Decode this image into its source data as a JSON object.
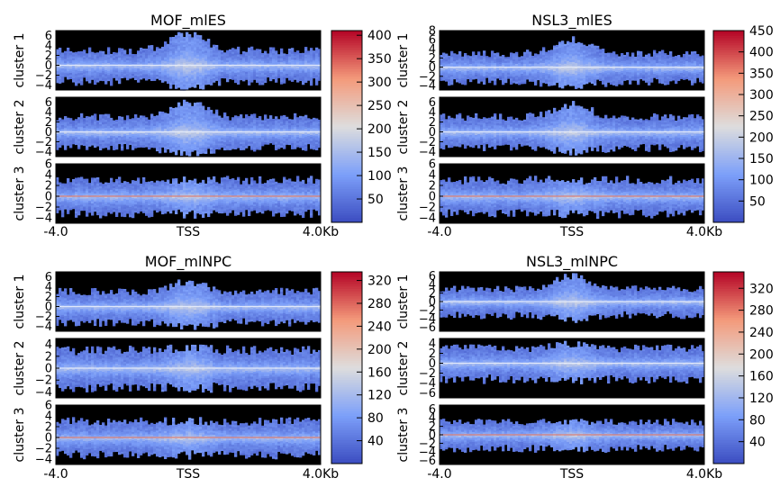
{
  "chart_data": [
    {
      "type": "heatmap",
      "title": "MOF_mlES",
      "x_ticks": [
        "-4.0",
        "TSS",
        "4.0Kb"
      ],
      "clusters": [
        {
          "label": "cluster 1",
          "ylim": [
            -5,
            7
          ],
          "y_ticks": [
            "6",
            "4",
            "2",
            "0",
            "−2",
            "−4"
          ],
          "peak_height": 3.5
        },
        {
          "label": "cluster 2",
          "ylim": [
            -5,
            7
          ],
          "y_ticks": [
            "6",
            "4",
            "2",
            "0",
            "−2",
            "−4"
          ],
          "peak_height": 3.0
        },
        {
          "label": "cluster 3",
          "ylim": [
            -5,
            6
          ],
          "y_ticks": [
            "6",
            "4",
            "2",
            "0",
            "−2",
            "−4"
          ],
          "peak_height": 0.0
        }
      ],
      "colorbar": {
        "min": 0,
        "max": 410,
        "ticks": [
          "50",
          "100",
          "150",
          "200",
          "250",
          "300",
          "350",
          "400"
        ],
        "tick_values": [
          50,
          100,
          150,
          200,
          250,
          300,
          350,
          400
        ]
      }
    },
    {
      "type": "heatmap",
      "title": "NSL3_mlES",
      "x_ticks": [
        "-4.0",
        "TSS",
        "4.0Kb"
      ],
      "clusters": [
        {
          "label": "cluster 1",
          "ylim": [
            -5,
            8
          ],
          "y_ticks": [
            "8",
            "6",
            "4",
            "2",
            "0",
            "−2",
            "−4"
          ],
          "peak_height": 3.0
        },
        {
          "label": "cluster 2",
          "ylim": [
            -5,
            7
          ],
          "y_ticks": [
            "6",
            "4",
            "2",
            "0",
            "−2",
            "−4"
          ],
          "peak_height": 2.5
        },
        {
          "label": "cluster 3",
          "ylim": [
            -5,
            6
          ],
          "y_ticks": [
            "6",
            "4",
            "2",
            "0",
            "−2",
            "−4"
          ],
          "peak_height": 0.0
        }
      ],
      "colorbar": {
        "min": 0,
        "max": 450,
        "ticks": [
          "50",
          "100",
          "150",
          "200",
          "250",
          "300",
          "350",
          "400",
          "450"
        ],
        "tick_values": [
          50,
          100,
          150,
          200,
          250,
          300,
          350,
          400,
          450
        ]
      }
    },
    {
      "type": "heatmap",
      "title": "MOF_mlNPC",
      "x_ticks": [
        "-4.0",
        "TSS",
        "4.0Kb"
      ],
      "clusters": [
        {
          "label": "cluster 1",
          "ylim": [
            -5,
            7
          ],
          "y_ticks": [
            "6",
            "4",
            "2",
            "0",
            "−2",
            "−4"
          ],
          "peak_height": 2.0
        },
        {
          "label": "cluster 2",
          "ylim": [
            -5,
            5
          ],
          "y_ticks": [
            "4",
            "2",
            "0",
            "−2",
            "−4"
          ],
          "peak_height": 0.5
        },
        {
          "label": "cluster 3",
          "ylim": [
            -5,
            6
          ],
          "y_ticks": [
            "6",
            "4",
            "2",
            "0",
            "−2",
            "−4"
          ],
          "peak_height": 0.0
        }
      ],
      "colorbar": {
        "min": 0,
        "max": 335,
        "ticks": [
          "40",
          "80",
          "120",
          "160",
          "200",
          "240",
          "280",
          "320"
        ],
        "tick_values": [
          40,
          80,
          120,
          160,
          200,
          240,
          280,
          320
        ]
      }
    },
    {
      "type": "heatmap",
      "title": "NSL3_mlNPC",
      "x_ticks": [
        "-4.0",
        "TSS",
        "4.0Kb"
      ],
      "clusters": [
        {
          "label": "cluster 1",
          "ylim": [
            -7,
            7
          ],
          "y_ticks": [
            "6",
            "4",
            "2",
            "0",
            "−2",
            "−4",
            "−6"
          ],
          "peak_height": 3.0
        },
        {
          "label": "cluster 2",
          "ylim": [
            -7,
            5
          ],
          "y_ticks": [
            "4",
            "2",
            "0",
            "−2",
            "−4",
            "−6"
          ],
          "peak_height": 1.0
        },
        {
          "label": "cluster 3",
          "ylim": [
            -7,
            7
          ],
          "y_ticks": [
            "6",
            "4",
            "2",
            "0",
            "−2",
            "−4",
            "−6"
          ],
          "peak_height": 0.0
        }
      ],
      "colorbar": {
        "min": 0,
        "max": 350,
        "ticks": [
          "40",
          "80",
          "120",
          "160",
          "200",
          "240",
          "280",
          "320"
        ],
        "tick_values": [
          40,
          80,
          120,
          160,
          200,
          240,
          280,
          320
        ]
      }
    }
  ]
}
